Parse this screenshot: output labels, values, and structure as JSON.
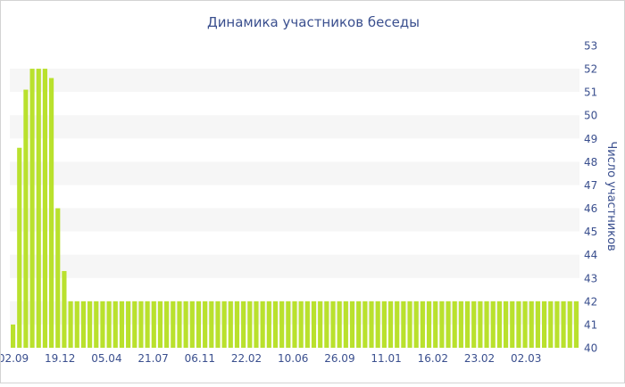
{
  "chart_data": {
    "type": "bar",
    "title": "Динамика участников беседы",
    "xlabel": "",
    "ylabel": "Число участников",
    "ylim": [
      40,
      53
    ],
    "y_ticks": [
      40,
      41,
      42,
      43,
      44,
      45,
      46,
      47,
      48,
      49,
      50,
      51,
      52,
      53
    ],
    "y_axis_position": "right",
    "x_tick_labels": [
      "02.09",
      "19.12",
      "05.04",
      "21.07",
      "06.11",
      "22.02",
      "10.06",
      "26.09",
      "11.01",
      "16.02",
      "23.02",
      "02.03"
    ],
    "grid": "alternating horizontal bands",
    "bar_color": "#b9e12d",
    "values": [
      41,
      48.6,
      51.1,
      52,
      52,
      52,
      51.6,
      46,
      43.3,
      42,
      42,
      42,
      42,
      42,
      42,
      42,
      42,
      42,
      42,
      42,
      42,
      42,
      42,
      42,
      42,
      42,
      42,
      42,
      42,
      42,
      42,
      42,
      42,
      42,
      42,
      42,
      42,
      42,
      42,
      42,
      42,
      42,
      42,
      42,
      42,
      42,
      42,
      42,
      42,
      42,
      42,
      42,
      42,
      42,
      42,
      42,
      42,
      42,
      42,
      42,
      42,
      42,
      42,
      42,
      42,
      42,
      42,
      42,
      42,
      42,
      42,
      42,
      42,
      42,
      42,
      42,
      42,
      42,
      42,
      42,
      42,
      42,
      42,
      42,
      42,
      42,
      42,
      42,
      42
    ]
  }
}
